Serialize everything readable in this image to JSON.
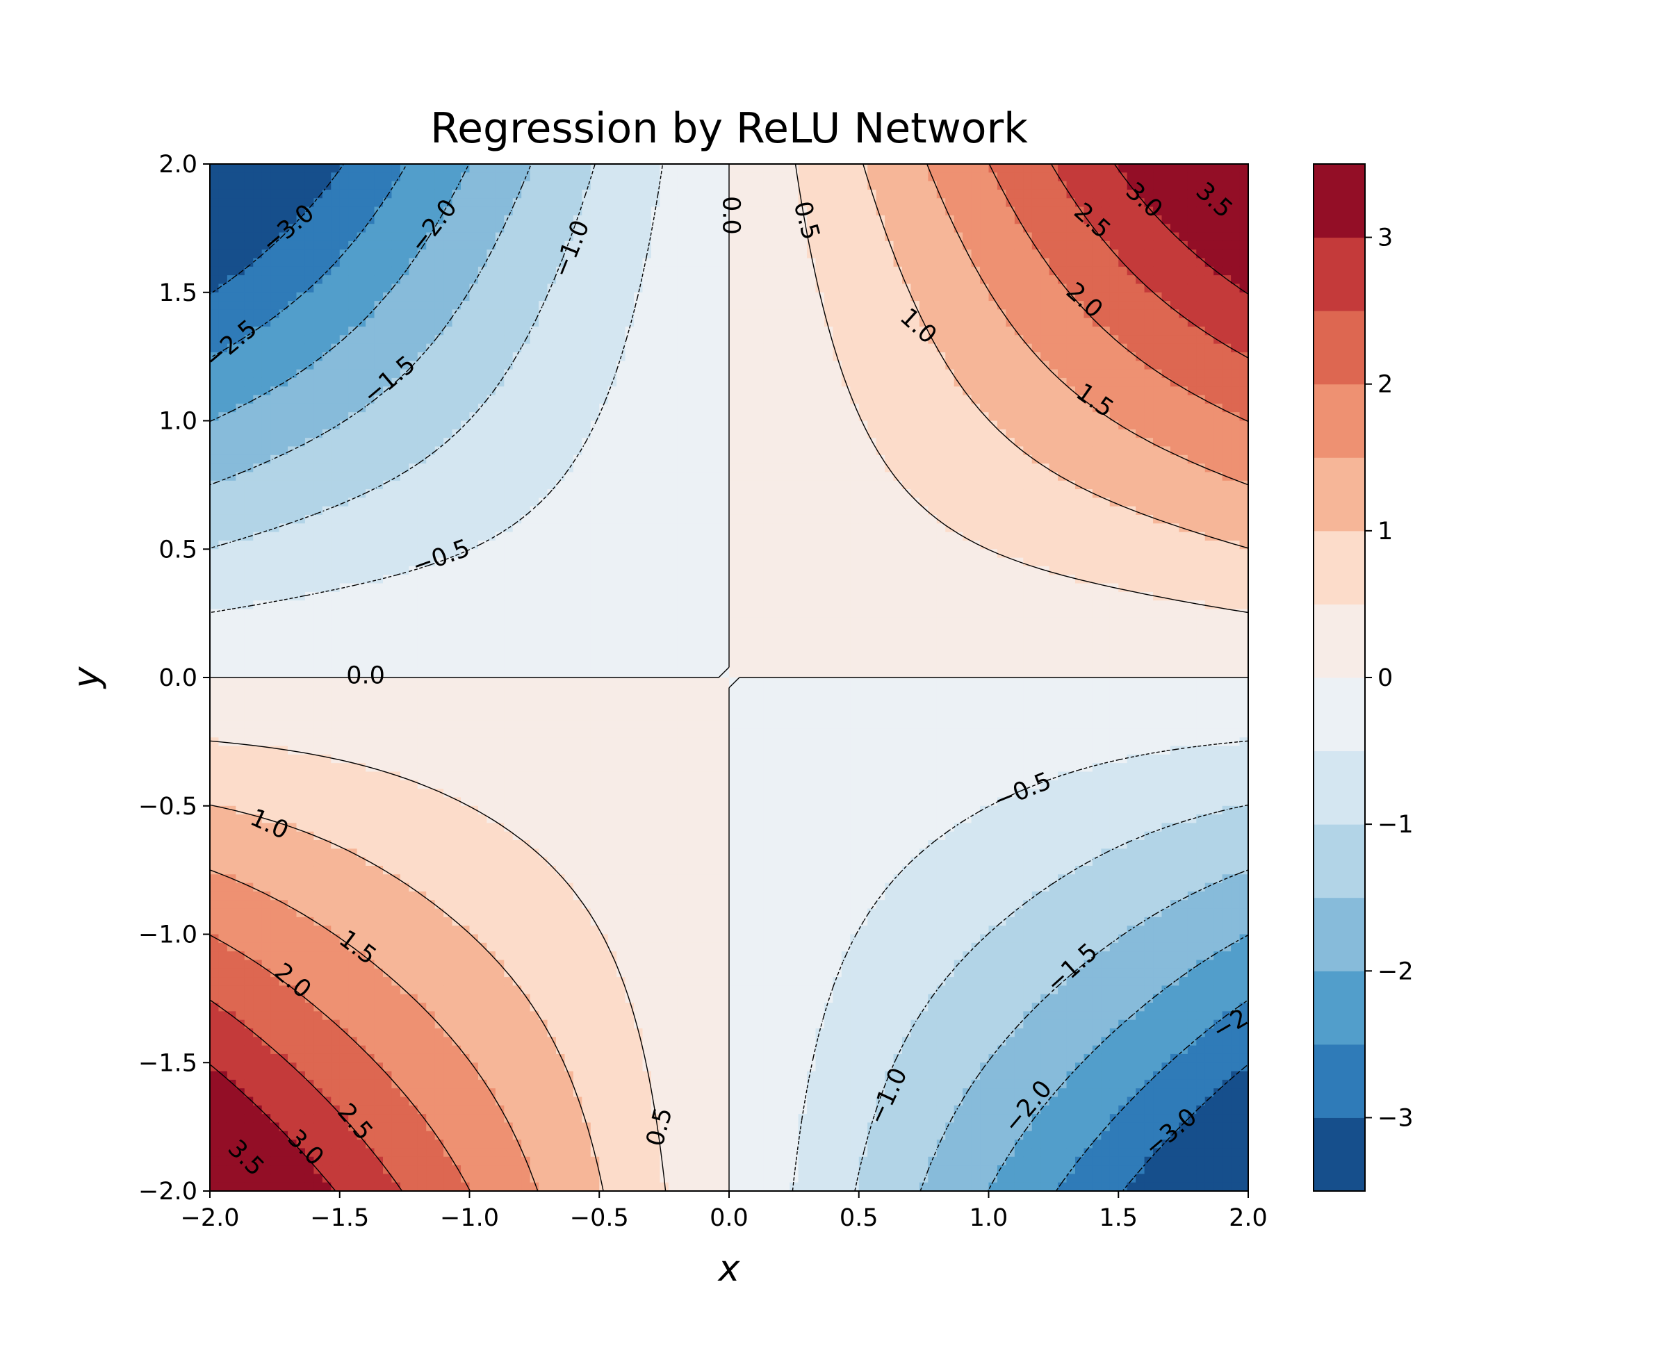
{
  "chart_data": {
    "type": "heatmap",
    "subtype": "filled-contour",
    "title": "Regression by ReLU Network",
    "xlabel": "x",
    "ylabel": "y",
    "xlim": [
      -2.0,
      2.0
    ],
    "ylim": [
      -2.0,
      2.0
    ],
    "x_ticks": [
      -2.0,
      -1.5,
      -1.0,
      -0.5,
      0.0,
      0.5,
      1.0,
      1.5,
      2.0
    ],
    "y_ticks": [
      -2.0,
      -1.5,
      -1.0,
      -0.5,
      0.0,
      0.5,
      1.0,
      1.5,
      2.0
    ],
    "x_tick_labels": [
      "−2.0",
      "−1.5",
      "−1.0",
      "−0.5",
      "0.0",
      "0.5",
      "1.0",
      "1.5",
      "2.0"
    ],
    "y_tick_labels": [
      "−2.0",
      "−1.5",
      "−1.0",
      "−0.5",
      "0.0",
      "0.5",
      "1.0",
      "1.5",
      "2.0"
    ],
    "function_shape": "z ≈ x · y (saddle)",
    "levels": [
      -3.5,
      -3.0,
      -2.5,
      -2.0,
      -1.5,
      -1.0,
      -0.5,
      0.0,
      0.5,
      1.0,
      1.5,
      2.0,
      2.5,
      3.0,
      3.5
    ],
    "band_colors": [
      "#164f8c",
      "#2f7bb8",
      "#529ecb",
      "#87bbda",
      "#b2d4e7",
      "#d4e6f1",
      "#ecf1f5",
      "#f7ece7",
      "#fcdcca",
      "#f6b698",
      "#ee9172",
      "#dd6751",
      "#c43a3a",
      "#930e26"
    ],
    "colorbar": {
      "range": [
        -3.5,
        3.5
      ],
      "ticks": [
        -3,
        -2,
        -1,
        0,
        1,
        2,
        3
      ],
      "tick_labels": [
        "−3",
        "−2",
        "−1",
        "0",
        "1",
        "2",
        "3"
      ]
    },
    "contour_labels": [
      {
        "text": "−3.0",
        "x": -1.7,
        "y": 1.75,
        "angle": -40
      },
      {
        "text": "−2.0",
        "x": -1.14,
        "y": 1.76,
        "angle": -52
      },
      {
        "text": "−1.0",
        "x": -0.61,
        "y": 1.67,
        "angle": -68
      },
      {
        "text": "0.0",
        "x": 0.01,
        "y": 1.8,
        "angle": 90
      },
      {
        "text": "0.5",
        "x": 0.3,
        "y": 1.78,
        "angle": 75
      },
      {
        "text": "3.5",
        "x": 1.87,
        "y": 1.86,
        "angle": 42
      },
      {
        "text": "3.0",
        "x": 1.6,
        "y": 1.86,
        "angle": 42
      },
      {
        "text": "2.5",
        "x": 1.4,
        "y": 1.78,
        "angle": 42
      },
      {
        "text": "2.0",
        "x": 1.37,
        "y": 1.47,
        "angle": 42
      },
      {
        "text": "1.0",
        "x": 0.73,
        "y": 1.37,
        "angle": 42
      },
      {
        "text": "1.5",
        "x": 1.41,
        "y": 1.08,
        "angle": 35
      },
      {
        "text": "−2.5",
        "x": -1.92,
        "y": 1.3,
        "angle": -40
      },
      {
        "text": "−1.5",
        "x": -1.31,
        "y": 1.16,
        "angle": -40
      },
      {
        "text": "−0.5",
        "x": -1.11,
        "y": 0.47,
        "angle": -20
      },
      {
        "text": "0.0",
        "x": -1.4,
        "y": 0.01,
        "angle": 0
      },
      {
        "text": "1.0",
        "x": -1.77,
        "y": -0.57,
        "angle": 25
      },
      {
        "text": "1.5",
        "x": -1.43,
        "y": -1.05,
        "angle": 37
      },
      {
        "text": "2.0",
        "x": -1.68,
        "y": -1.18,
        "angle": 40
      },
      {
        "text": "2.5",
        "x": -1.44,
        "y": -1.73,
        "angle": 50
      },
      {
        "text": "3.0",
        "x": -1.63,
        "y": -1.83,
        "angle": 45
      },
      {
        "text": "3.5",
        "x": -1.86,
        "y": -1.87,
        "angle": 45
      },
      {
        "text": "−0.5",
        "x": 1.13,
        "y": -0.44,
        "angle": -22
      },
      {
        "text": "−1.5",
        "x": 1.32,
        "y": -1.13,
        "angle": -42
      },
      {
        "text": "−2",
        "x": 1.93,
        "y": -1.35,
        "angle": -30
      },
      {
        "text": "−1.0",
        "x": 0.61,
        "y": -1.63,
        "angle": -65
      },
      {
        "text": "0.5",
        "x": -0.27,
        "y": -1.75,
        "angle": -75
      },
      {
        "text": "−2.0",
        "x": 1.15,
        "y": -1.67,
        "angle": -50
      },
      {
        "text": "−3.0",
        "x": 1.7,
        "y": -1.77,
        "angle": -40
      }
    ]
  }
}
